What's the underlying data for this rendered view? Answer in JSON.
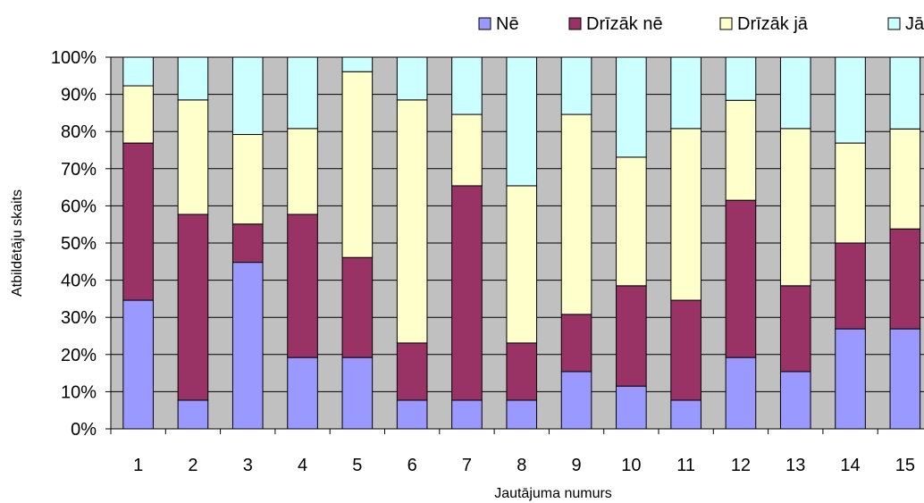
{
  "chart_data": {
    "type": "bar",
    "stacked": true,
    "percent_stacked": true,
    "categories": [
      "1",
      "2",
      "3",
      "4",
      "5",
      "6",
      "7",
      "8",
      "9",
      "10",
      "11",
      "12",
      "13",
      "14",
      "15"
    ],
    "series": [
      {
        "name": "Nē",
        "color": "#9999ff",
        "values": [
          34.6,
          7.7,
          44.8,
          19.2,
          19.2,
          7.7,
          7.7,
          7.7,
          15.4,
          11.5,
          7.7,
          19.2,
          15.4,
          26.9,
          26.9
        ]
      },
      {
        "name": "Drīzāk nē",
        "color": "#993366",
        "values": [
          42.3,
          50.0,
          10.3,
          38.5,
          26.9,
          15.4,
          57.7,
          15.4,
          15.4,
          27.0,
          26.9,
          42.3,
          23.1,
          23.1,
          26.9
        ]
      },
      {
        "name": "Drīzāk jā",
        "color": "#ffffcc",
        "values": [
          15.4,
          30.8,
          24.1,
          23.1,
          50.0,
          65.4,
          19.2,
          42.3,
          53.8,
          34.6,
          46.2,
          26.9,
          42.3,
          26.9,
          26.9
        ]
      },
      {
        "name": "Jā",
        "color": "#ccffff",
        "values": [
          7.7,
          11.5,
          20.8,
          19.2,
          3.9,
          11.5,
          15.4,
          34.6,
          15.4,
          26.9,
          19.2,
          11.6,
          19.2,
          23.1,
          19.3
        ]
      }
    ],
    "y_tick_labels": [
      "0%",
      "10%",
      "20%",
      "30%",
      "40%",
      "50%",
      "60%",
      "70%",
      "80%",
      "90%",
      "100%"
    ],
    "ylim": [
      0,
      100
    ],
    "xlabel": "Jautājuma numurs",
    "ylabel": "Atbildētāju skaits",
    "title": "",
    "grid": true,
    "plot_background": "#c0c0c0",
    "legend_position": "top-right"
  }
}
